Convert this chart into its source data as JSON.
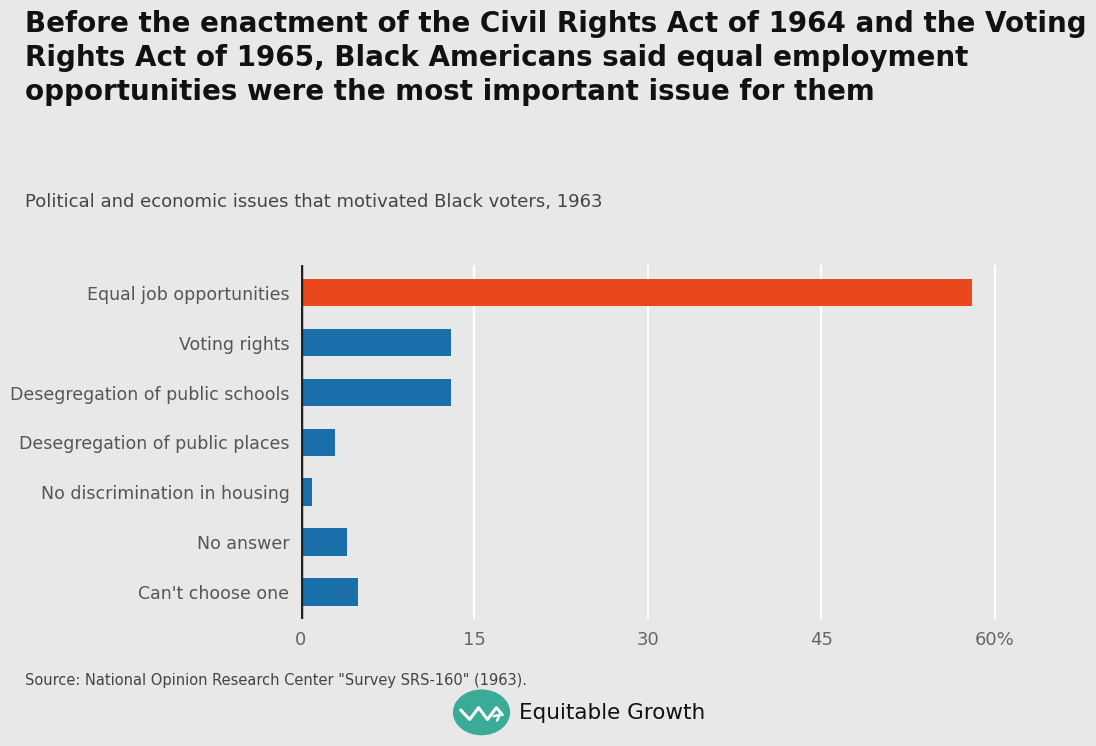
{
  "categories": [
    "Can't choose one",
    "No answer",
    "No discrimination in housing",
    "Desegregation of public places",
    "Desegregation of public schools",
    "Voting rights",
    "Equal job opportunities"
  ],
  "values": [
    5,
    4,
    1,
    3,
    13,
    13,
    58
  ],
  "bar_colors": [
    "#1a6faa",
    "#1a6faa",
    "#1a6faa",
    "#1a6faa",
    "#1a6faa",
    "#1a6faa",
    "#e8481c"
  ],
  "title_line1": "Before the enactment of the Civil Rights Act of 1964 and the Voting",
  "title_line2": "Rights Act of 1965, Black Americans said equal employment",
  "title_line3": "opportunities were the most important issue for them",
  "subtitle": "Political and economic issues that motivated Black voters, 1963",
  "xlim": [
    0,
    63
  ],
  "xticks": [
    0,
    15,
    30,
    45,
    60
  ],
  "xtick_labels": [
    "0",
    "15",
    "30",
    "45",
    "60%"
  ],
  "source_text": "Source: National Opinion Research Center \"Survey SRS-160\" (1963).",
  "logo_text": "Equitable Growth",
  "background_color": "#e8e8e8",
  "title_fontsize": 20,
  "subtitle_fontsize": 13,
  "axis_label_fontsize": 12.5,
  "xtick_fontsize": 13,
  "bar_height": 0.55,
  "grid_color": "#ffffff",
  "label_color": "#555555",
  "tick_color": "#666666",
  "logo_color": "#3aab96"
}
